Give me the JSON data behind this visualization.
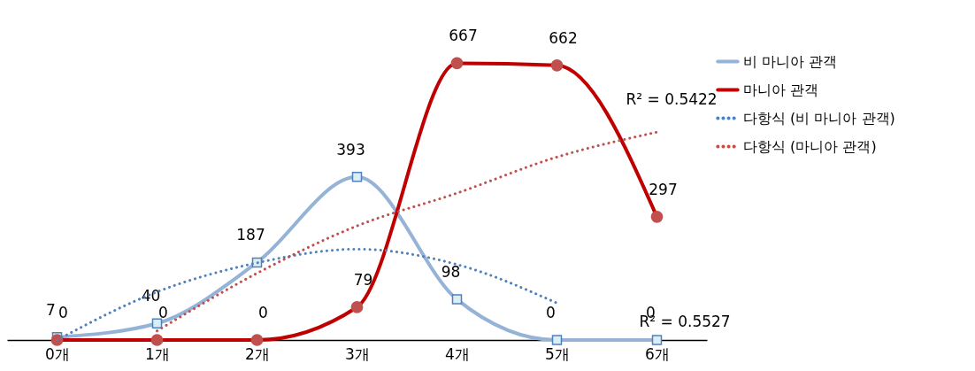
{
  "chart_data": {
    "type": "line",
    "categories": [
      "0개",
      "1개",
      "2개",
      "3개",
      "4개",
      "5개",
      "6개"
    ],
    "legend": "right",
    "grid": false,
    "series": [
      {
        "name": "비 마니아 관객",
        "color": "#95b3d7",
        "marker": "square",
        "line_style": "solid",
        "values": [
          7,
          40,
          187,
          393,
          98,
          0,
          0
        ],
        "value_labels": [
          "7",
          "40",
          "187",
          "393",
          "98",
          "0",
          "0"
        ]
      },
      {
        "name": "마니아 관객",
        "color": "#c00000",
        "marker": "circle",
        "line_style": "solid",
        "values": [
          0,
          0,
          0,
          79,
          667,
          662,
          297
        ],
        "value_labels": [
          "0",
          "0",
          "0",
          "79",
          "667",
          "662",
          "297"
        ]
      },
      {
        "name": "다항식 (비 마니아 관객)",
        "color": "#4f81bd",
        "marker": "none",
        "line_style": "dotted",
        "values": [
          0,
          116,
          186,
          219,
          182,
          89,
          null
        ]
      },
      {
        "name": "다항식 (마니아 관객)",
        "color": "#c0504d",
        "marker": "none",
        "line_style": "dotted",
        "values": [
          null,
          22,
          161,
          275,
          354,
          441,
          501
        ]
      }
    ],
    "annotations": [
      {
        "text": "R² = 0.5422",
        "x": "6개",
        "y": 501
      },
      {
        "text": "R² = 0.5527",
        "x": "6개",
        "y": 0
      }
    ]
  }
}
